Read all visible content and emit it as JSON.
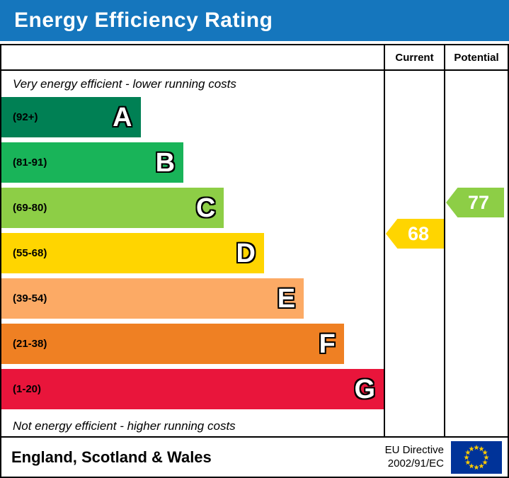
{
  "title": "Energy Efficiency Rating",
  "columns": {
    "current": "Current",
    "potential": "Potential"
  },
  "top_note": "Very energy efficient - lower running costs",
  "bottom_note": "Not energy efficient - higher running costs",
  "bands": [
    {
      "label": "A",
      "range": "(92+)",
      "color": "#008054",
      "width_pct": 36.4
    },
    {
      "label": "B",
      "range": "(81-91)",
      "color": "#19b459",
      "width_pct": 47.6
    },
    {
      "label": "C",
      "range": "(69-80)",
      "color": "#8dce46",
      "width_pct": 58.2
    },
    {
      "label": "D",
      "range": "(55-68)",
      "color": "#ffd500",
      "width_pct": 68.7
    },
    {
      "label": "E",
      "range": "(39-54)",
      "color": "#fcaa65",
      "width_pct": 79.1
    },
    {
      "label": "F",
      "range": "(21-38)",
      "color": "#ef8023",
      "width_pct": 89.6
    },
    {
      "label": "G",
      "range": "(1-20)",
      "color": "#e9153b",
      "width_pct": 100
    }
  ],
  "current": {
    "label": "Current",
    "value": "68",
    "band": "D",
    "color": "#ffd500"
  },
  "potential": {
    "label": "Potential",
    "value": "77",
    "band": "C",
    "color": "#8dce46"
  },
  "footer": {
    "region": "England, Scotland & Wales",
    "directive_line1": "EU Directive",
    "directive_line2": "2002/91/EC"
  },
  "colors": {
    "title_bar": "#1576bd",
    "title_text": "#ffffff",
    "eu_blue": "#003399",
    "eu_star": "#ffcc00"
  },
  "chart_data": {
    "type": "bar",
    "title": "Energy Efficiency Rating",
    "categories": [
      "A",
      "B",
      "C",
      "D",
      "E",
      "F",
      "G"
    ],
    "band_ranges": [
      "92+",
      "81-91",
      "69-80",
      "55-68",
      "39-54",
      "21-38",
      "1-20"
    ],
    "band_colors": [
      "#008054",
      "#19b459",
      "#8dce46",
      "#ffd500",
      "#fcaa65",
      "#ef8023",
      "#e9153b"
    ],
    "bar_relative_widths_pct": [
      36.4,
      47.6,
      58.2,
      68.7,
      79.1,
      89.6,
      100
    ],
    "markers": [
      {
        "name": "Current",
        "value": 68,
        "band": "D",
        "color": "#ffd500"
      },
      {
        "name": "Potential",
        "value": 77,
        "band": "C",
        "color": "#8dce46"
      }
    ],
    "annotations": [
      "Very energy efficient - lower running costs",
      "Not energy efficient - higher running costs"
    ],
    "legend_position": "none",
    "footer_text": "England, Scotland & Wales | EU Directive 2002/91/EC"
  }
}
